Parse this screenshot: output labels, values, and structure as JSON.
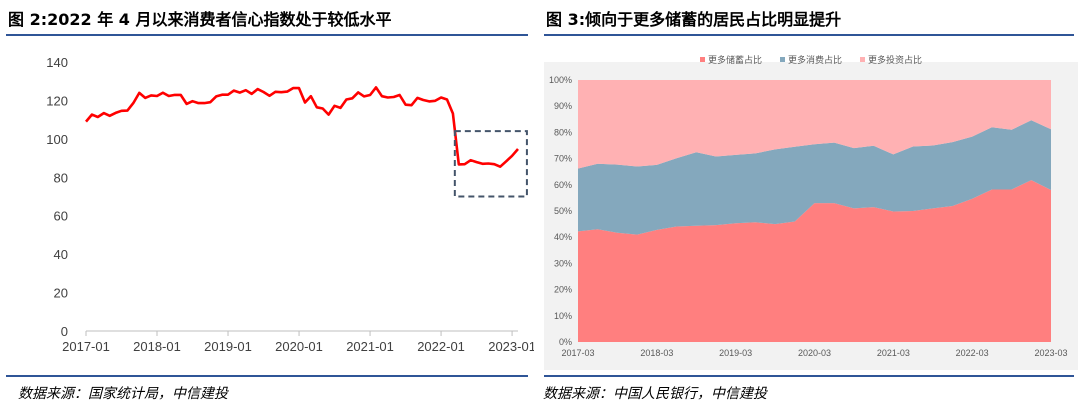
{
  "left": {
    "title": "图 2:2022 年 4 月以来消费者信心指数处于较低水平",
    "source": "数据来源：国家统计局，中信建投",
    "chart_data": {
      "type": "line",
      "title": "图 2:2022 年 4 月以来消费者信心指数处于较低水平",
      "ylim": [
        0,
        140
      ],
      "y_ticks": [
        0,
        20,
        40,
        60,
        80,
        100,
        120,
        140
      ],
      "x_tick_labels": [
        "2017-01",
        "2018-01",
        "2019-01",
        "2020-01",
        "2021-01",
        "2022-01",
        "2023-01"
      ],
      "x_tick_index": [
        0,
        12,
        24,
        36,
        48,
        60,
        72
      ],
      "color": "#ff0000",
      "highlight_box": {
        "from_index": 63,
        "to_index": 74,
        "y_from": 70,
        "y_to": 104,
        "color": "#44546a"
      },
      "x": [
        "2017-01",
        "2017-02",
        "2017-03",
        "2017-04",
        "2017-05",
        "2017-06",
        "2017-07",
        "2017-08",
        "2017-09",
        "2017-10",
        "2017-11",
        "2017-12",
        "2018-01",
        "2018-02",
        "2018-03",
        "2018-04",
        "2018-05",
        "2018-06",
        "2018-07",
        "2018-08",
        "2018-09",
        "2018-10",
        "2018-11",
        "2018-12",
        "2019-01",
        "2019-02",
        "2019-03",
        "2019-04",
        "2019-05",
        "2019-06",
        "2019-07",
        "2019-08",
        "2019-09",
        "2019-10",
        "2019-11",
        "2019-12",
        "2020-01",
        "2020-02",
        "2020-03",
        "2020-04",
        "2020-05",
        "2020-06",
        "2020-07",
        "2020-08",
        "2020-09",
        "2020-10",
        "2020-11",
        "2020-12",
        "2021-01",
        "2021-02",
        "2021-03",
        "2021-04",
        "2021-05",
        "2021-06",
        "2021-07",
        "2021-08",
        "2021-09",
        "2021-10",
        "2021-11",
        "2021-12",
        "2022-01",
        "2022-02",
        "2022-03",
        "2022-04",
        "2022-05",
        "2022-06",
        "2022-07",
        "2022-08",
        "2022-09",
        "2022-10",
        "2022-11",
        "2022-12",
        "2023-01",
        "2023-02"
      ],
      "values": [
        109.0,
        112.6,
        111.4,
        113.4,
        112.0,
        113.5,
        114.6,
        114.7,
        118.6,
        123.9,
        121.3,
        122.6,
        122.3,
        124.0,
        122.3,
        122.9,
        122.9,
        118.2,
        119.6,
        118.6,
        118.6,
        119.1,
        122.1,
        123.0,
        123.0,
        125.1,
        124.1,
        125.3,
        123.4,
        125.9,
        124.4,
        122.4,
        124.5,
        124.3,
        124.6,
        126.4,
        126.4,
        118.9,
        122.2,
        116.4,
        115.8,
        112.6,
        117.2,
        116.1,
        120.5,
        121.1,
        124.2,
        122.1,
        122.8,
        126.8,
        122.2,
        121.5,
        121.8,
        122.8,
        117.8,
        117.5,
        121.3,
        120.2,
        119.5,
        119.8,
        121.5,
        120.5,
        113.2,
        86.7,
        86.8,
        88.9,
        87.9,
        87.0,
        87.2,
        86.8,
        85.5,
        88.3,
        91.2,
        94.7
      ]
    }
  },
  "right": {
    "title": "图 3:倾向于更多储蓄的居民占比明显提升",
    "source": "数据来源：中国人民银行，中信建投",
    "chart_data": {
      "type": "area",
      "stacked": "percent",
      "title": "图 3:倾向于更多储蓄的居民占比明显提升",
      "ylim": [
        0,
        100
      ],
      "y_ticks": [
        "0%",
        "10%",
        "20%",
        "30%",
        "40%",
        "50%",
        "60%",
        "70%",
        "80%",
        "90%",
        "100%"
      ],
      "legend_position": "top",
      "x_tick_labels": [
        "2017-03",
        "2018-03",
        "2019-03",
        "2020-03",
        "2021-03",
        "2022-03",
        "2023-03"
      ],
      "x_tick_index": [
        0,
        4,
        8,
        12,
        16,
        20,
        24
      ],
      "x": [
        "2017-03",
        "2017-06",
        "2017-09",
        "2017-12",
        "2018-03",
        "2018-06",
        "2018-09",
        "2018-12",
        "2019-03",
        "2019-06",
        "2019-09",
        "2019-12",
        "2020-03",
        "2020-06",
        "2020-09",
        "2020-12",
        "2021-03",
        "2021-06",
        "2021-09",
        "2021-12",
        "2022-03",
        "2022-06",
        "2022-09",
        "2022-12",
        "2023-03"
      ],
      "series": [
        {
          "name": "更多储蓄占比",
          "color": "#ff7f7f",
          "values": [
            42.2,
            43.0,
            41.7,
            41.0,
            42.8,
            44.1,
            44.4,
            44.6,
            45.3,
            45.7,
            45.0,
            46.0,
            53.0,
            53.0,
            51.0,
            51.5,
            49.8,
            50.0,
            51.0,
            51.9,
            54.7,
            58.2,
            58.2,
            61.8,
            58.0
          ]
        },
        {
          "name": "更多消费占比",
          "color": "#84a8bd",
          "values": [
            24.0,
            25.0,
            26.0,
            26.0,
            24.8,
            26.0,
            28.0,
            26.2,
            26.1,
            26.3,
            28.5,
            28.5,
            22.5,
            23.1,
            23.0,
            23.4,
            21.8,
            24.6,
            24.0,
            24.4,
            23.7,
            23.8,
            22.8,
            22.8,
            23.2
          ]
        },
        {
          "name": "更多投资占比",
          "color": "#ffb1b3",
          "values": [
            33.8,
            32.0,
            32.3,
            33.0,
            32.4,
            29.9,
            27.6,
            29.2,
            28.6,
            28.0,
            26.5,
            25.5,
            24.5,
            23.9,
            26.0,
            25.1,
            28.4,
            25.4,
            25.0,
            23.7,
            21.6,
            18.0,
            19.0,
            15.4,
            18.8
          ]
        }
      ]
    }
  }
}
